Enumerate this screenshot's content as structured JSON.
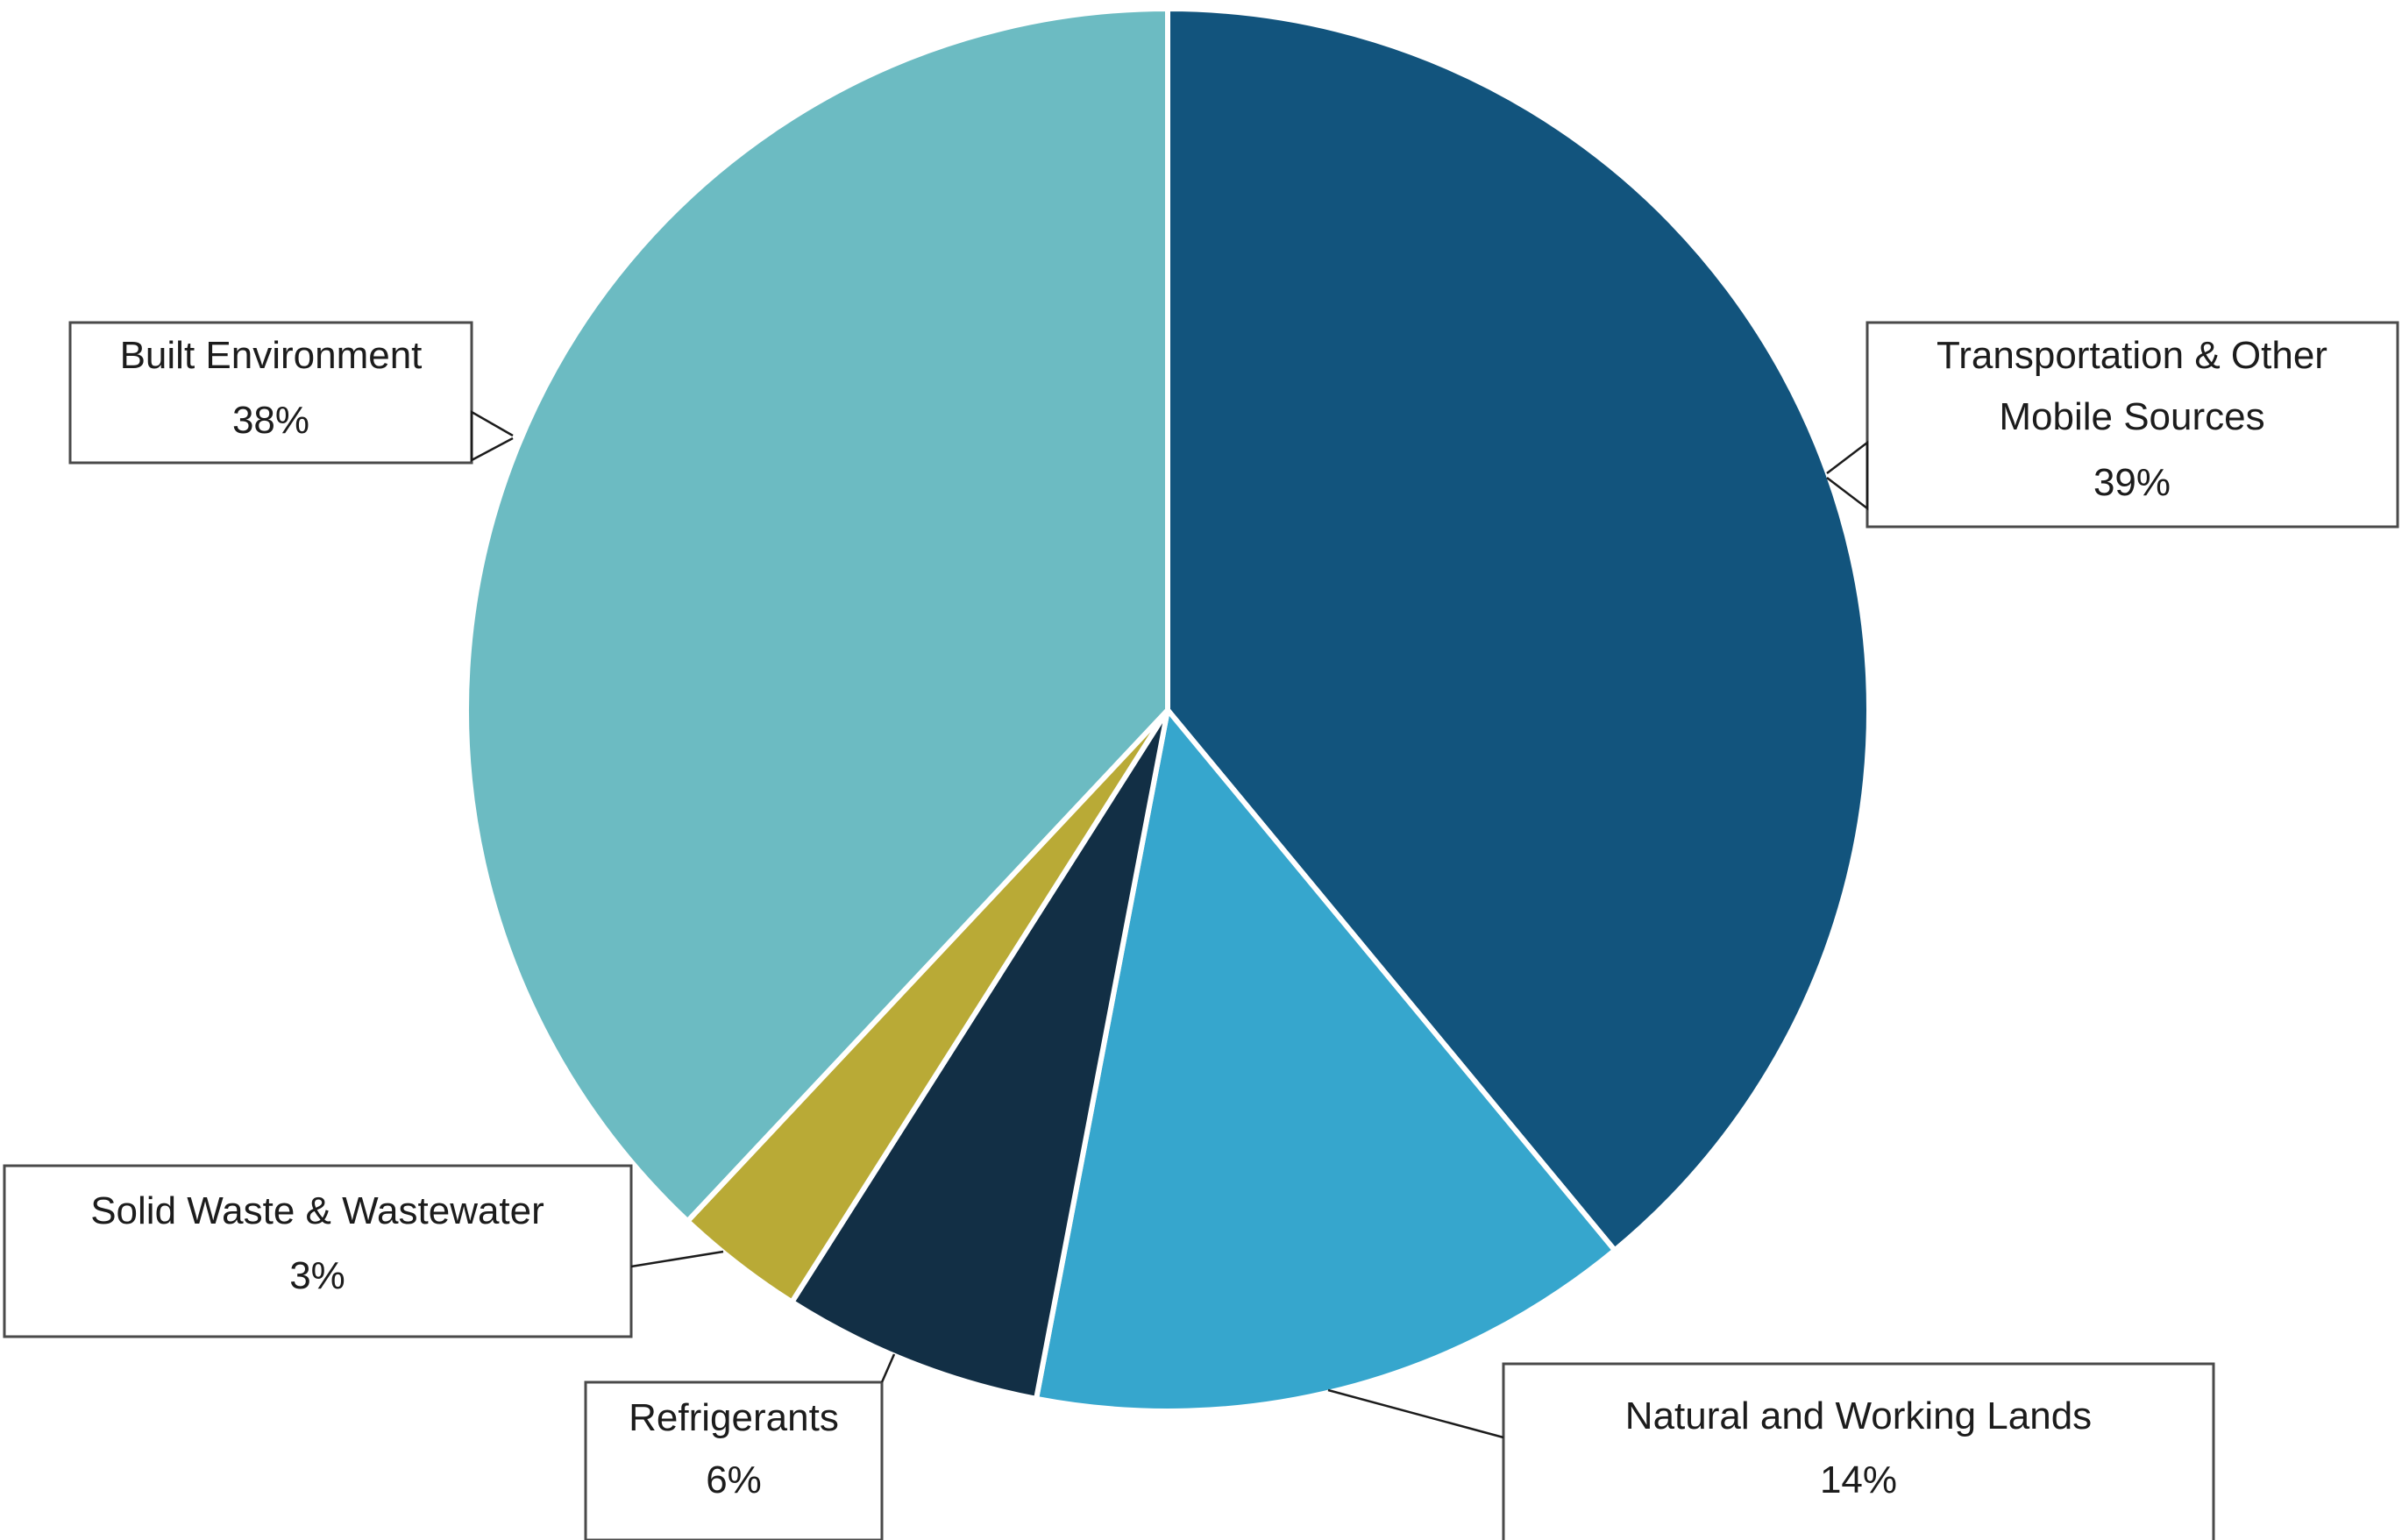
{
  "chart_data": {
    "type": "pie",
    "title": "",
    "slices": [
      {
        "name": "Transportation & Other Mobile Sources",
        "lines": [
          "Transportation & Other",
          "Mobile Sources"
        ],
        "value": 39,
        "pct_label": "39%",
        "color": "#12547d"
      },
      {
        "name": "Natural and Working Lands",
        "lines": [
          "Natural and Working Lands"
        ],
        "value": 14,
        "pct_label": "14%",
        "color": "#36a6cd"
      },
      {
        "name": "Refrigerants",
        "lines": [
          "Refrigerants"
        ],
        "value": 6,
        "pct_label": "6%",
        "color": "#122f45"
      },
      {
        "name": "Solid Waste & Wastewater",
        "lines": [
          "Solid Waste & Wastewater"
        ],
        "value": 3,
        "pct_label": "3%",
        "color": "#b9aa36"
      },
      {
        "name": "Built Environment",
        "lines": [
          "Built Environment"
        ],
        "value": 38,
        "pct_label": "38%",
        "color": "#6cbbc2"
      }
    ],
    "start_angle_deg": 0,
    "direction": "clockwise",
    "legend": "none",
    "label_style": "callout-boxes"
  }
}
